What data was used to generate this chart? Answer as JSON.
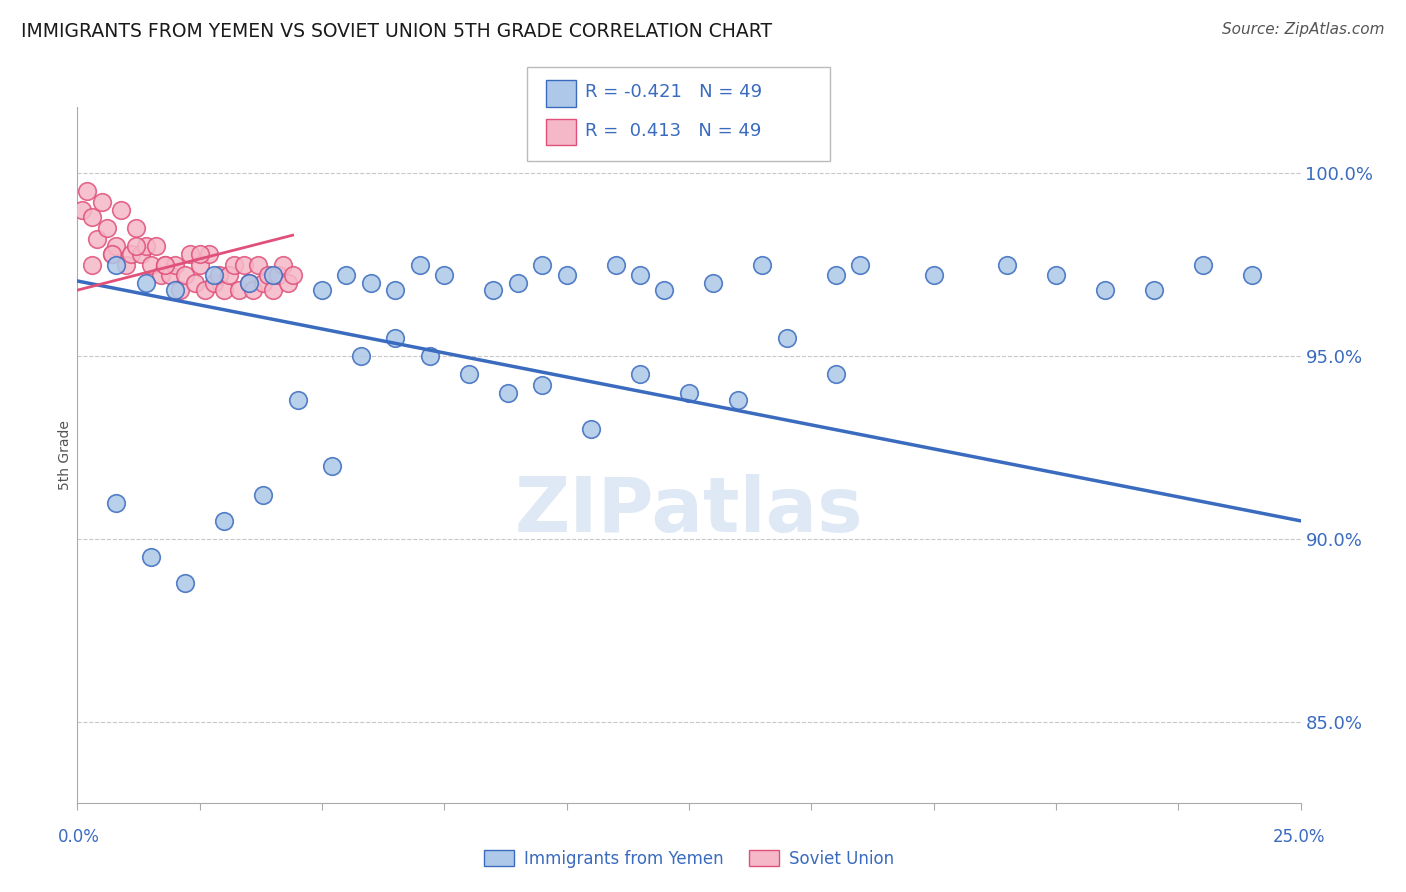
{
  "title": "IMMIGRANTS FROM YEMEN VS SOVIET UNION 5TH GRADE CORRELATION CHART",
  "source": "Source: ZipAtlas.com",
  "ylabel": "5th Grade",
  "ylabel_ticks": [
    "85.0%",
    "90.0%",
    "95.0%",
    "100.0%"
  ],
  "ylabel_tick_vals": [
    0.85,
    0.9,
    0.95,
    1.0
  ],
  "xlim": [
    0.0,
    0.25
  ],
  "ylim": [
    0.828,
    1.018
  ],
  "legend_r_blue": "-0.421",
  "legend_r_pink": "0.413",
  "legend_n": "49",
  "blue_color": "#adc8e8",
  "blue_line_color": "#3a6bbf",
  "pink_color": "#f5b8c8",
  "pink_line_color": "#e0507a",
  "watermark": "ZIPatlas",
  "blue_x": [
    0.008,
    0.014,
    0.02,
    0.028,
    0.035,
    0.04,
    0.05,
    0.055,
    0.06,
    0.065,
    0.07,
    0.075,
    0.085,
    0.09,
    0.095,
    0.1,
    0.11,
    0.115,
    0.12,
    0.13,
    0.14,
    0.155,
    0.16,
    0.175,
    0.19,
    0.2,
    0.21,
    0.22,
    0.23,
    0.24,
    0.008,
    0.015,
    0.022,
    0.03,
    0.038,
    0.045,
    0.052,
    0.058,
    0.065,
    0.072,
    0.08,
    0.088,
    0.095,
    0.105,
    0.115,
    0.125,
    0.135,
    0.145,
    0.155
  ],
  "blue_y": [
    0.975,
    0.97,
    0.968,
    0.972,
    0.97,
    0.972,
    0.968,
    0.972,
    0.97,
    0.968,
    0.975,
    0.972,
    0.968,
    0.97,
    0.975,
    0.972,
    0.975,
    0.972,
    0.968,
    0.97,
    0.975,
    0.972,
    0.975,
    0.972,
    0.975,
    0.972,
    0.968,
    0.968,
    0.975,
    0.972,
    0.91,
    0.895,
    0.888,
    0.905,
    0.912,
    0.938,
    0.92,
    0.95,
    0.955,
    0.95,
    0.945,
    0.94,
    0.942,
    0.93,
    0.945,
    0.94,
    0.938,
    0.955,
    0.945
  ],
  "pink_x": [
    0.001,
    0.002,
    0.003,
    0.004,
    0.005,
    0.006,
    0.007,
    0.008,
    0.009,
    0.01,
    0.011,
    0.012,
    0.013,
    0.014,
    0.015,
    0.016,
    0.017,
    0.018,
    0.019,
    0.02,
    0.021,
    0.022,
    0.023,
    0.024,
    0.025,
    0.026,
    0.027,
    0.028,
    0.029,
    0.03,
    0.031,
    0.032,
    0.033,
    0.034,
    0.035,
    0.036,
    0.037,
    0.038,
    0.039,
    0.04,
    0.041,
    0.042,
    0.043,
    0.044,
    0.003,
    0.007,
    0.012,
    0.018,
    0.025
  ],
  "pink_y": [
    0.99,
    0.995,
    0.988,
    0.982,
    0.992,
    0.985,
    0.978,
    0.98,
    0.99,
    0.975,
    0.978,
    0.985,
    0.978,
    0.98,
    0.975,
    0.98,
    0.972,
    0.975,
    0.972,
    0.975,
    0.968,
    0.972,
    0.978,
    0.97,
    0.975,
    0.968,
    0.978,
    0.97,
    0.972,
    0.968,
    0.972,
    0.975,
    0.968,
    0.975,
    0.97,
    0.968,
    0.975,
    0.97,
    0.972,
    0.968,
    0.972,
    0.975,
    0.97,
    0.972,
    0.975,
    0.978,
    0.98,
    0.975,
    0.978
  ],
  "blue_trendline_x": [
    0.0,
    0.25
  ],
  "blue_trendline_y": [
    0.9705,
    0.905
  ],
  "pink_trendline_x": [
    0.0,
    0.044
  ],
  "pink_trendline_y": [
    0.968,
    0.983
  ],
  "grid_color": "#c8c8c8",
  "bg_color": "#ffffff",
  "text_color": "#3a6bbf",
  "axis_text_color": "#555555"
}
